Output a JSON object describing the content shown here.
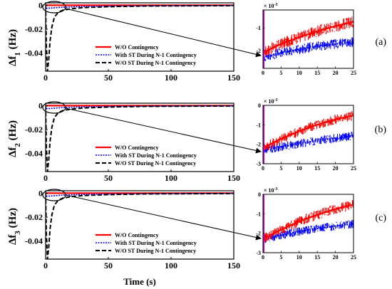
{
  "figure": {
    "xlabel": "Time (s)"
  },
  "legend_labels": [
    "W/O Contingency",
    "With ST During N-1 Contingency",
    "W/O ST During N-1 Contingency"
  ],
  "colors": {
    "wo_contingency": "#ff0000",
    "with_st": "#0000ff",
    "wo_st": "#000000"
  },
  "chart_data": [
    {
      "type": "line",
      "panel_label": "(a)",
      "ylabel_main": "Δf",
      "ylabel_sub": "1",
      "ylabel_unit": " (Hz)",
      "xlabel": "",
      "xlim": [
        0,
        150
      ],
      "ylim": [
        -0.055,
        0.002
      ],
      "xticks": [
        0,
        50,
        100,
        150
      ],
      "yticks": [
        0,
        -0.02,
        -0.04
      ],
      "ytick_labels": [
        "0",
        "-0.02",
        "-0.04"
      ],
      "series": [
        {
          "name": "W/O Contingency",
          "x": [
            0,
            150
          ],
          "y": [
            0,
            0
          ]
        },
        {
          "name": "With ST During N-1 Contingency",
          "x": [
            0,
            1,
            3,
            6,
            10,
            15,
            25,
            40,
            60,
            80,
            100,
            120,
            150
          ],
          "y": [
            0,
            -0.0026,
            -0.0024,
            -0.0022,
            -0.0019,
            -0.0016,
            -0.0012,
            -0.0009,
            -0.0006,
            -0.0005,
            -0.0004,
            -0.0003,
            -0.0002
          ]
        },
        {
          "name": "W/O ST During N-1 Contingency",
          "x": [
            0,
            0.6,
            1.5,
            2.5,
            3.5,
            5,
            7,
            10,
            14,
            20,
            30,
            50,
            80,
            150
          ],
          "y": [
            0,
            -0.035,
            -0.055,
            -0.045,
            -0.03,
            -0.018,
            -0.01,
            -0.006,
            -0.004,
            -0.003,
            -0.002,
            -0.0012,
            -0.0006,
            -0.0003
          ]
        }
      ],
      "inset": {
        "xlim": [
          0,
          25
        ],
        "ylim": [
          -2.8,
          -0.2
        ],
        "xticks": [
          0,
          5,
          10,
          15,
          20,
          25
        ],
        "yticks": [
          -1,
          -2
        ],
        "ytick_labels": [
          "-1",
          "-2"
        ],
        "multiplier": "× 10",
        "multiplier_exp": "-3",
        "series": [
          {
            "name": "W/O Contingency",
            "x": [
              0,
              2.5,
              5,
              7.5,
              10,
              12.5,
              15,
              17.5,
              20,
              22.5,
              25
            ],
            "y": [
              -2.1,
              -1.9,
              -1.72,
              -1.56,
              -1.42,
              -1.28,
              -1.15,
              -1.03,
              -0.92,
              -0.82,
              -0.72
            ]
          },
          {
            "name": "With ST During N-1 Contingency",
            "x": [
              0,
              2.5,
              5,
              7.5,
              10,
              12.5,
              15,
              17.5,
              20,
              22.5,
              25
            ],
            "y": [
              -2.3,
              -2.2,
              -2.1,
              -2.02,
              -1.95,
              -1.88,
              -1.82,
              -1.77,
              -1.72,
              -1.67,
              -1.62
            ]
          }
        ]
      }
    },
    {
      "type": "line",
      "panel_label": "(b)",
      "ylabel_main": "Δf",
      "ylabel_sub": "2",
      "ylabel_unit": " (Hz)",
      "xlabel": "",
      "xlim": [
        0,
        150
      ],
      "ylim": [
        -0.055,
        0.002
      ],
      "xticks": [
        0,
        50,
        100,
        150
      ],
      "yticks": [
        0,
        -0.02,
        -0.04
      ],
      "ytick_labels": [
        "0",
        "-0.02",
        "-0.04"
      ],
      "series": [
        {
          "name": "W/O Contingency",
          "x": [
            0,
            150
          ],
          "y": [
            0,
            0
          ]
        },
        {
          "name": "With ST During N-1 Contingency",
          "x": [
            0,
            1,
            3,
            6,
            10,
            15,
            25,
            40,
            60,
            80,
            100,
            120,
            150
          ],
          "y": [
            0,
            -0.0026,
            -0.0024,
            -0.0022,
            -0.0019,
            -0.0016,
            -0.0012,
            -0.0009,
            -0.0006,
            -0.0005,
            -0.0004,
            -0.0003,
            -0.0002
          ]
        },
        {
          "name": "W/O ST During N-1 Contingency",
          "x": [
            0,
            0.6,
            1.5,
            2.5,
            3.5,
            5,
            7,
            10,
            14,
            20,
            30,
            50,
            80,
            150
          ],
          "y": [
            0,
            -0.035,
            -0.055,
            -0.045,
            -0.03,
            -0.018,
            -0.01,
            -0.006,
            -0.004,
            -0.003,
            -0.002,
            -0.0012,
            -0.0006,
            -0.0003
          ]
        }
      ],
      "inset": {
        "xlim": [
          0,
          25
        ],
        "ylim": [
          -3,
          0
        ],
        "xticks": [
          0,
          5,
          10,
          15,
          20,
          25
        ],
        "yticks": [
          0,
          -1,
          -2,
          -3
        ],
        "ytick_labels": [
          "0",
          "-1",
          "-2",
          "-3"
        ],
        "multiplier": "× 10",
        "multiplier_exp": "-3",
        "series": [
          {
            "name": "W/O Contingency",
            "x": [
              0,
              2.5,
              5,
              7.5,
              10,
              12.5,
              15,
              17.5,
              20,
              22.5,
              25
            ],
            "y": [
              -2.2,
              -1.95,
              -1.72,
              -1.52,
              -1.33,
              -1.16,
              -1.0,
              -0.86,
              -0.73,
              -0.62,
              -0.52
            ]
          },
          {
            "name": "With ST During N-1 Contingency",
            "x": [
              0,
              2.5,
              5,
              7.5,
              10,
              12.5,
              15,
              17.5,
              20,
              22.5,
              25
            ],
            "y": [
              -2.3,
              -2.22,
              -2.13,
              -2.05,
              -1.97,
              -1.89,
              -1.82,
              -1.75,
              -1.69,
              -1.63,
              -1.57
            ]
          }
        ]
      }
    },
    {
      "type": "line",
      "panel_label": "(c)",
      "ylabel_main": "Δf",
      "ylabel_sub": "3",
      "ylabel_unit": " (Hz)",
      "xlabel": "Time (s)",
      "xlim": [
        0,
        150
      ],
      "ylim": [
        -0.055,
        0.002
      ],
      "xticks": [
        0,
        50,
        100,
        150
      ],
      "yticks": [
        0,
        -0.02,
        -0.04
      ],
      "ytick_labels": [
        "0",
        "-0.02",
        "-0.04"
      ],
      "series": [
        {
          "name": "W/O Contingency",
          "x": [
            0,
            150
          ],
          "y": [
            0,
            0
          ]
        },
        {
          "name": "With ST During N-1 Contingency",
          "x": [
            0,
            1,
            3,
            6,
            10,
            15,
            25,
            40,
            60,
            80,
            100,
            120,
            150
          ],
          "y": [
            0,
            -0.0026,
            -0.0024,
            -0.0022,
            -0.0019,
            -0.0016,
            -0.0012,
            -0.0009,
            -0.0006,
            -0.0005,
            -0.0004,
            -0.0003,
            -0.0002
          ]
        },
        {
          "name": "W/O ST During N-1 Contingency",
          "x": [
            0,
            0.6,
            1.5,
            2.5,
            3.5,
            5,
            7,
            10,
            14,
            20,
            30,
            50,
            80,
            150
          ],
          "y": [
            0,
            -0.035,
            -0.055,
            -0.045,
            -0.03,
            -0.018,
            -0.01,
            -0.006,
            -0.004,
            -0.003,
            -0.002,
            -0.0012,
            -0.0006,
            -0.0003
          ]
        }
      ],
      "inset": {
        "xlim": [
          0,
          25
        ],
        "ylim": [
          -3,
          0
        ],
        "xticks": [
          0,
          5,
          10,
          15,
          20,
          25
        ],
        "yticks": [
          0,
          -1,
          -2,
          -3
        ],
        "ytick_labels": [
          "0",
          "-1",
          "-2",
          "-3"
        ],
        "multiplier": "× 10",
        "multiplier_exp": "-3",
        "series": [
          {
            "name": "W/O Contingency",
            "x": [
              0,
              2.5,
              5,
              7.5,
              10,
              12.5,
              15,
              17.5,
              20,
              22.5,
              25
            ],
            "y": [
              -2.3,
              -2.05,
              -1.82,
              -1.6,
              -1.4,
              -1.22,
              -1.05,
              -0.9,
              -0.76,
              -0.64,
              -0.53
            ]
          },
          {
            "name": "With ST During N-1 Contingency",
            "x": [
              0,
              2.5,
              5,
              7.5,
              10,
              12.5,
              15,
              17.5,
              20,
              22.5,
              25
            ],
            "y": [
              -2.3,
              -2.2,
              -2.1,
              -2.0,
              -1.91,
              -1.83,
              -1.76,
              -1.69,
              -1.63,
              -1.57,
              -1.52
            ]
          }
        ]
      }
    }
  ]
}
